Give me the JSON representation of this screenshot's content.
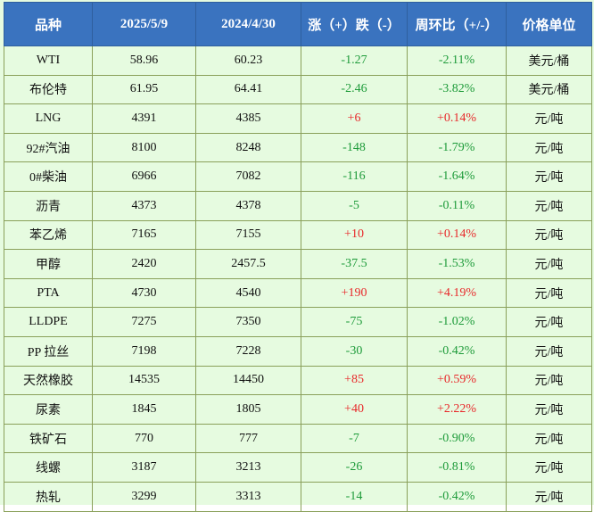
{
  "table": {
    "headers": [
      "品种",
      "2025/5/9",
      "2024/4/30",
      "涨（+）跌（-）",
      "周环比（+/-）",
      "价格单位"
    ],
    "rows": [
      {
        "name": "WTI",
        "cur": "58.96",
        "prev": "60.23",
        "chg": "-1.27",
        "pct": "-2.11%",
        "unit": "美元/桶",
        "dir": "down"
      },
      {
        "name": "布伦特",
        "cur": "61.95",
        "prev": "64.41",
        "chg": "-2.46",
        "pct": "-3.82%",
        "unit": "美元/桶",
        "dir": "down"
      },
      {
        "name": "LNG",
        "cur": "4391",
        "prev": "4385",
        "chg": "+6",
        "pct": "+0.14%",
        "unit": "元/吨",
        "dir": "up"
      },
      {
        "name": "92#汽油",
        "cur": "8100",
        "prev": "8248",
        "chg": "-148",
        "pct": "-1.79%",
        "unit": "元/吨",
        "dir": "down"
      },
      {
        "name": "0#柴油",
        "cur": "6966",
        "prev": "7082",
        "chg": "-116",
        "pct": "-1.64%",
        "unit": "元/吨",
        "dir": "down"
      },
      {
        "name": "沥青",
        "cur": "4373",
        "prev": "4378",
        "chg": "-5",
        "pct": "-0.11%",
        "unit": "元/吨",
        "dir": "down"
      },
      {
        "name": "苯乙烯",
        "cur": "7165",
        "prev": "7155",
        "chg": "+10",
        "pct": "+0.14%",
        "unit": "元/吨",
        "dir": "up"
      },
      {
        "name": "甲醇",
        "cur": "2420",
        "prev": "2457.5",
        "chg": "-37.5",
        "pct": "-1.53%",
        "unit": "元/吨",
        "dir": "down"
      },
      {
        "name": "PTA",
        "cur": "4730",
        "prev": "4540",
        "chg": "+190",
        "pct": "+4.19%",
        "unit": "元/吨",
        "dir": "up"
      },
      {
        "name": "LLDPE",
        "cur": "7275",
        "prev": "7350",
        "chg": "-75",
        "pct": "-1.02%",
        "unit": "元/吨",
        "dir": "down"
      },
      {
        "name": "PP 拉丝",
        "cur": "7198",
        "prev": "7228",
        "chg": "-30",
        "pct": "-0.42%",
        "unit": "元/吨",
        "dir": "down"
      },
      {
        "name": "天然橡胶",
        "cur": "14535",
        "prev": "14450",
        "chg": "+85",
        "pct": "+0.59%",
        "unit": "元/吨",
        "dir": "up"
      },
      {
        "name": "尿素",
        "cur": "1845",
        "prev": "1805",
        "chg": "+40",
        "pct": "+2.22%",
        "unit": "元/吨",
        "dir": "up"
      },
      {
        "name": "铁矿石",
        "cur": "770",
        "prev": "777",
        "chg": "-7",
        "pct": "-0.90%",
        "unit": "元/吨",
        "dir": "down"
      },
      {
        "name": "线螺",
        "cur": "3187",
        "prev": "3213",
        "chg": "-26",
        "pct": "-0.81%",
        "unit": "元/吨",
        "dir": "down"
      },
      {
        "name": "热轧",
        "cur": "3299",
        "prev": "3313",
        "chg": "-14",
        "pct": "-0.42%",
        "unit": "元/吨",
        "dir": "down"
      }
    ]
  },
  "colors": {
    "header_bg": "#3a73bf",
    "row_bg": "#e6fbe0",
    "up": "#e8282a",
    "down": "#1e9b3a"
  }
}
